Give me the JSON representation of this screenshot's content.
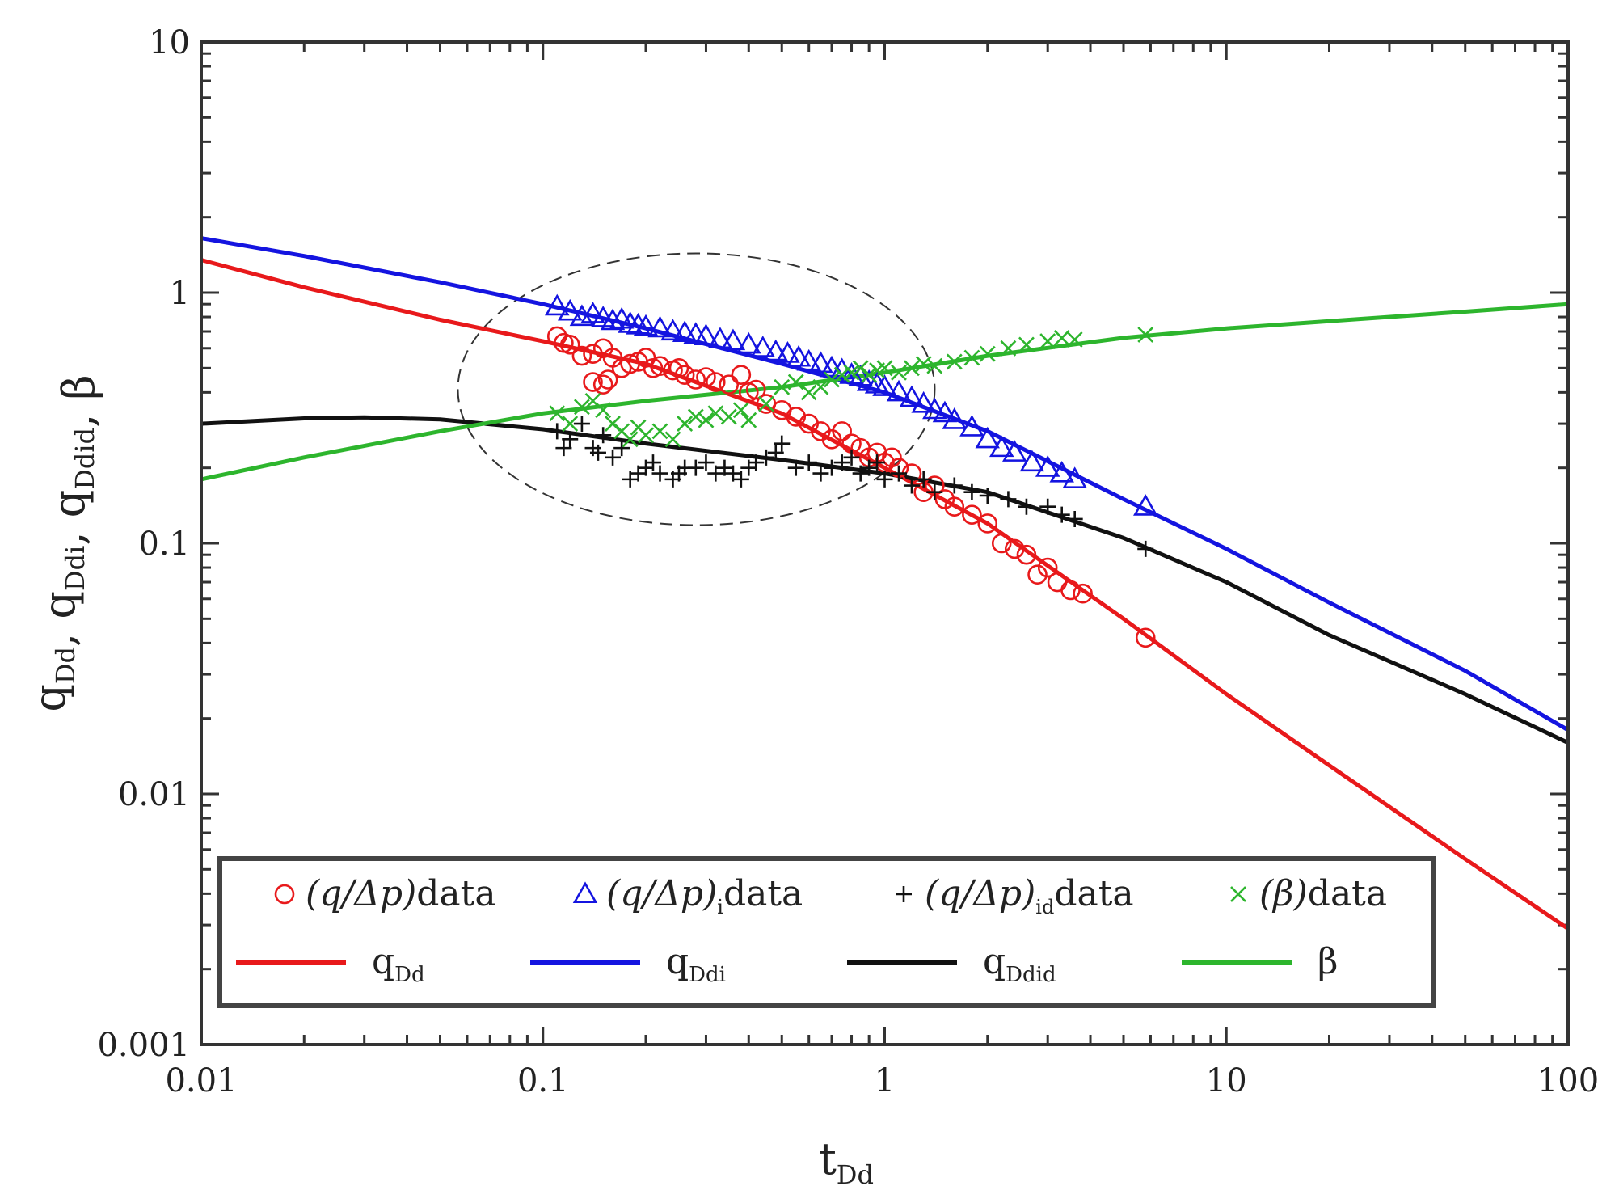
{
  "chart_data": {
    "type": "line",
    "scale": {
      "x": "log",
      "y": "log"
    },
    "xlim": [
      0.01,
      100
    ],
    "ylim": [
      0.001,
      10
    ],
    "x_ticks": [
      {
        "value": 0.01,
        "label": "0.01"
      },
      {
        "value": 0.1,
        "label": "0.1"
      },
      {
        "value": 1,
        "label": "1"
      },
      {
        "value": 10,
        "label": "10"
      },
      {
        "value": 100,
        "label": "100"
      }
    ],
    "y_ticks": [
      {
        "value": 0.001,
        "label": "0.001"
      },
      {
        "value": 0.01,
        "label": "0.01"
      },
      {
        "value": 0.1,
        "label": "0.1"
      },
      {
        "value": 1,
        "label": "1"
      },
      {
        "value": 10,
        "label": "10"
      }
    ],
    "xlabel": {
      "main": "t",
      "sub": "Dd"
    },
    "ylabel": {
      "parts": [
        {
          "main": "q",
          "sub": "Dd"
        },
        {
          "main": ", q",
          "sub": "Ddi"
        },
        {
          "main": ", q",
          "sub": "Ddid"
        },
        {
          "main": ", β",
          "sub": ""
        }
      ]
    },
    "colors": {
      "red": "#e8191b",
      "blue": "#1414e0",
      "black": "#111111",
      "green": "#2db52d",
      "ellipse": "#333333"
    },
    "series": [
      {
        "name": "q_Dd",
        "kind": "line",
        "color": "#e8191b",
        "x": [
          0.01,
          0.02,
          0.05,
          0.1,
          0.2,
          0.5,
          1,
          2,
          5,
          10,
          20,
          50,
          100
        ],
        "y": [
          1.35,
          1.05,
          0.78,
          0.64,
          0.52,
          0.33,
          0.2,
          0.12,
          0.05,
          0.025,
          0.013,
          0.0055,
          0.0029
        ]
      },
      {
        "name": "q_Ddi",
        "kind": "line",
        "color": "#1414e0",
        "x": [
          0.01,
          0.02,
          0.05,
          0.1,
          0.2,
          0.5,
          1,
          2,
          5,
          10,
          20,
          50,
          100
        ],
        "y": [
          1.65,
          1.4,
          1.1,
          0.9,
          0.72,
          0.52,
          0.4,
          0.28,
          0.15,
          0.095,
          0.058,
          0.031,
          0.018
        ]
      },
      {
        "name": "q_Ddid",
        "kind": "line",
        "color": "#111111",
        "x": [
          0.01,
          0.02,
          0.03,
          0.05,
          0.1,
          0.2,
          0.5,
          1,
          2,
          5,
          10,
          20,
          50,
          100
        ],
        "y": [
          0.3,
          0.315,
          0.318,
          0.312,
          0.285,
          0.25,
          0.215,
          0.19,
          0.16,
          0.105,
          0.07,
          0.043,
          0.025,
          0.016
        ]
      },
      {
        "name": "beta",
        "kind": "line",
        "color": "#2db52d",
        "x": [
          0.01,
          0.02,
          0.05,
          0.1,
          0.2,
          0.5,
          1,
          2,
          5,
          10,
          20,
          50,
          100
        ],
        "y": [
          0.18,
          0.22,
          0.28,
          0.33,
          0.37,
          0.42,
          0.48,
          0.56,
          0.66,
          0.72,
          0.77,
          0.84,
          0.9
        ]
      },
      {
        "name": "(q/Δp) data",
        "kind": "circle",
        "color": "#e8191b",
        "x": [
          0.11,
          0.115,
          0.12,
          0.13,
          0.14,
          0.15,
          0.16,
          0.17,
          0.18,
          0.19,
          0.2,
          0.21,
          0.22,
          0.24,
          0.25,
          0.26,
          0.28,
          0.3,
          0.32,
          0.35,
          0.38,
          0.4,
          0.42,
          0.45,
          0.5,
          0.55,
          0.6,
          0.65,
          0.7,
          0.75,
          0.8,
          0.85,
          0.9,
          0.95,
          1.0,
          1.05,
          1.1,
          1.2,
          1.3,
          1.4,
          1.5,
          1.6,
          1.8,
          2.0,
          2.2,
          2.4,
          2.6,
          2.8,
          3.0,
          3.2,
          3.5,
          3.8,
          5.8,
          0.14,
          0.15,
          0.155
        ],
        "y": [
          0.67,
          0.63,
          0.62,
          0.56,
          0.57,
          0.6,
          0.55,
          0.5,
          0.52,
          0.53,
          0.55,
          0.5,
          0.51,
          0.49,
          0.5,
          0.47,
          0.45,
          0.46,
          0.44,
          0.43,
          0.47,
          0.4,
          0.41,
          0.36,
          0.34,
          0.32,
          0.3,
          0.28,
          0.26,
          0.28,
          0.25,
          0.24,
          0.22,
          0.23,
          0.21,
          0.22,
          0.2,
          0.19,
          0.16,
          0.17,
          0.15,
          0.14,
          0.13,
          0.12,
          0.1,
          0.095,
          0.09,
          0.075,
          0.08,
          0.07,
          0.065,
          0.063,
          0.042,
          0.44,
          0.43,
          0.45
        ]
      },
      {
        "name": "(q/Δp)_i data",
        "kind": "triangle",
        "color": "#1414e0",
        "x": [
          0.11,
          0.12,
          0.13,
          0.14,
          0.15,
          0.16,
          0.17,
          0.18,
          0.19,
          0.2,
          0.22,
          0.24,
          0.26,
          0.28,
          0.3,
          0.33,
          0.36,
          0.4,
          0.44,
          0.48,
          0.52,
          0.56,
          0.6,
          0.65,
          0.7,
          0.75,
          0.8,
          0.85,
          0.9,
          0.95,
          1.0,
          1.1,
          1.2,
          1.3,
          1.4,
          1.5,
          1.6,
          1.8,
          2.0,
          2.2,
          2.4,
          2.7,
          3.0,
          3.3,
          3.6,
          5.8
        ],
        "y": [
          0.88,
          0.84,
          0.8,
          0.82,
          0.79,
          0.77,
          0.78,
          0.75,
          0.74,
          0.73,
          0.72,
          0.7,
          0.69,
          0.68,
          0.67,
          0.65,
          0.64,
          0.62,
          0.6,
          0.58,
          0.57,
          0.55,
          0.53,
          0.52,
          0.5,
          0.49,
          0.47,
          0.46,
          0.44,
          0.43,
          0.42,
          0.4,
          0.38,
          0.36,
          0.34,
          0.33,
          0.31,
          0.29,
          0.26,
          0.24,
          0.23,
          0.21,
          0.2,
          0.19,
          0.18,
          0.14
        ]
      },
      {
        "name": "(q/Δp)_id data",
        "kind": "plus",
        "color": "#111111",
        "x": [
          0.11,
          0.12,
          0.13,
          0.14,
          0.15,
          0.16,
          0.17,
          0.18,
          0.19,
          0.2,
          0.21,
          0.22,
          0.24,
          0.25,
          0.26,
          0.28,
          0.3,
          0.32,
          0.34,
          0.36,
          0.38,
          0.4,
          0.42,
          0.45,
          0.48,
          0.5,
          0.55,
          0.6,
          0.65,
          0.7,
          0.75,
          0.8,
          0.85,
          0.9,
          0.95,
          1.0,
          1.1,
          1.2,
          1.3,
          1.4,
          1.6,
          1.8,
          2.0,
          2.3,
          2.6,
          3.0,
          3.3,
          3.6,
          5.8,
          0.115,
          0.145
        ],
        "y": [
          0.28,
          0.26,
          0.3,
          0.24,
          0.27,
          0.22,
          0.24,
          0.18,
          0.19,
          0.2,
          0.21,
          0.19,
          0.18,
          0.19,
          0.2,
          0.2,
          0.21,
          0.19,
          0.2,
          0.19,
          0.18,
          0.2,
          0.21,
          0.22,
          0.23,
          0.25,
          0.2,
          0.21,
          0.19,
          0.2,
          0.21,
          0.22,
          0.19,
          0.2,
          0.21,
          0.18,
          0.19,
          0.17,
          0.18,
          0.16,
          0.17,
          0.16,
          0.155,
          0.15,
          0.14,
          0.14,
          0.13,
          0.125,
          0.095,
          0.24,
          0.23
        ]
      },
      {
        "name": "(β) data",
        "kind": "cross",
        "color": "#2db52d",
        "x": [
          0.11,
          0.12,
          0.13,
          0.14,
          0.15,
          0.16,
          0.17,
          0.18,
          0.19,
          0.2,
          0.22,
          0.24,
          0.26,
          0.28,
          0.3,
          0.32,
          0.35,
          0.38,
          0.4,
          0.45,
          0.5,
          0.55,
          0.6,
          0.65,
          0.7,
          0.75,
          0.8,
          0.85,
          0.9,
          0.95,
          1.0,
          1.1,
          1.2,
          1.3,
          1.4,
          1.6,
          1.8,
          2.0,
          2.3,
          2.6,
          3.0,
          3.3,
          3.6,
          5.8
        ],
        "y": [
          0.33,
          0.3,
          0.35,
          0.37,
          0.34,
          0.3,
          0.28,
          0.26,
          0.29,
          0.27,
          0.28,
          0.26,
          0.3,
          0.32,
          0.31,
          0.33,
          0.32,
          0.34,
          0.31,
          0.36,
          0.42,
          0.44,
          0.4,
          0.42,
          0.45,
          0.47,
          0.48,
          0.5,
          0.47,
          0.49,
          0.5,
          0.48,
          0.5,
          0.52,
          0.51,
          0.53,
          0.55,
          0.57,
          0.6,
          0.62,
          0.64,
          0.66,
          0.65,
          0.68
        ]
      }
    ],
    "ellipse": {
      "center": [
        0.3,
        0.45
      ],
      "note": "dashed outline around early-time data"
    },
    "legend": {
      "placement": "bottom-left",
      "markers": [
        {
          "symbol": "○",
          "color": "#e8191b",
          "text": "(q/Δp)",
          "sub": "",
          "suffix": "data"
        },
        {
          "symbol": "△",
          "color": "#1414e0",
          "text": "(q/Δp)",
          "sub": "i",
          "suffix": "data"
        },
        {
          "symbol": "+",
          "color": "#111111",
          "text": "(q/Δp)",
          "sub": "id",
          "suffix": "data"
        },
        {
          "symbol": "×",
          "color": "#2db52d",
          "text": "(β)",
          "sub": "",
          "suffix": "data"
        }
      ],
      "lines": [
        {
          "color": "#e8191b",
          "text": "q",
          "sub": "Dd"
        },
        {
          "color": "#1414e0",
          "text": "q",
          "sub": "Ddi"
        },
        {
          "color": "#111111",
          "text": "q",
          "sub": "Ddid"
        },
        {
          "color": "#2db52d",
          "text": "β",
          "sub": ""
        }
      ]
    }
  }
}
